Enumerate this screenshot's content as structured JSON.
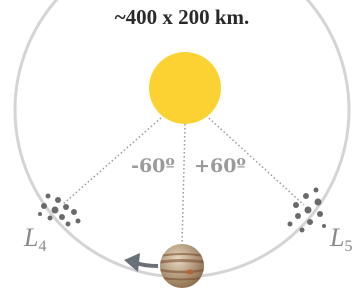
{
  "caption": "~400 x 200 km.",
  "angles": {
    "left": "-60º",
    "right": "+60º"
  },
  "points": {
    "l4": {
      "letter": "L",
      "sub": "4"
    },
    "l5": {
      "letter": "L",
      "sub": "5"
    }
  }
}
